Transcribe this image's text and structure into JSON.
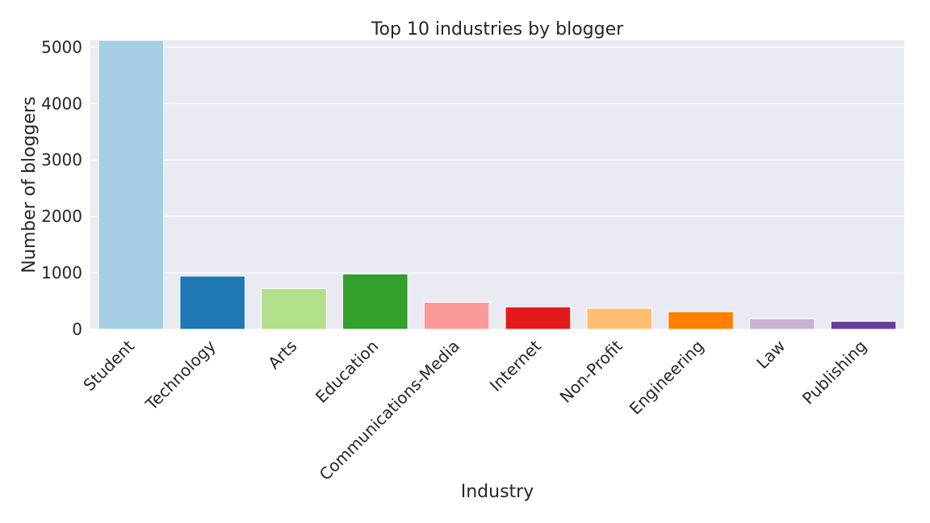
{
  "chart_data": {
    "type": "bar",
    "title": "Top 10 industries by blogger",
    "xlabel": "Industry",
    "ylabel": "Number of bloggers",
    "categories": [
      "Student",
      "Technology",
      "Arts",
      "Education",
      "Communications-Media",
      "Internet",
      "Non-Profit",
      "Engineering",
      "Law",
      "Publishing"
    ],
    "values": [
      5120,
      943,
      721,
      980,
      479,
      397,
      372,
      312,
      186,
      141
    ],
    "colors": [
      "#a6cee3",
      "#1f78b4",
      "#b2df8a",
      "#33a02c",
      "#fb9a99",
      "#e31a1c",
      "#fdbf6f",
      "#ff7f00",
      "#cab2d6",
      "#6a3d9a"
    ],
    "ylim": [
      0,
      5120
    ],
    "yticks": [
      0,
      1000,
      2000,
      3000,
      4000,
      5000
    ],
    "grid": true,
    "background": "#eaeaf2",
    "grid_color": "#ffffff",
    "text_color": "#262626"
  }
}
